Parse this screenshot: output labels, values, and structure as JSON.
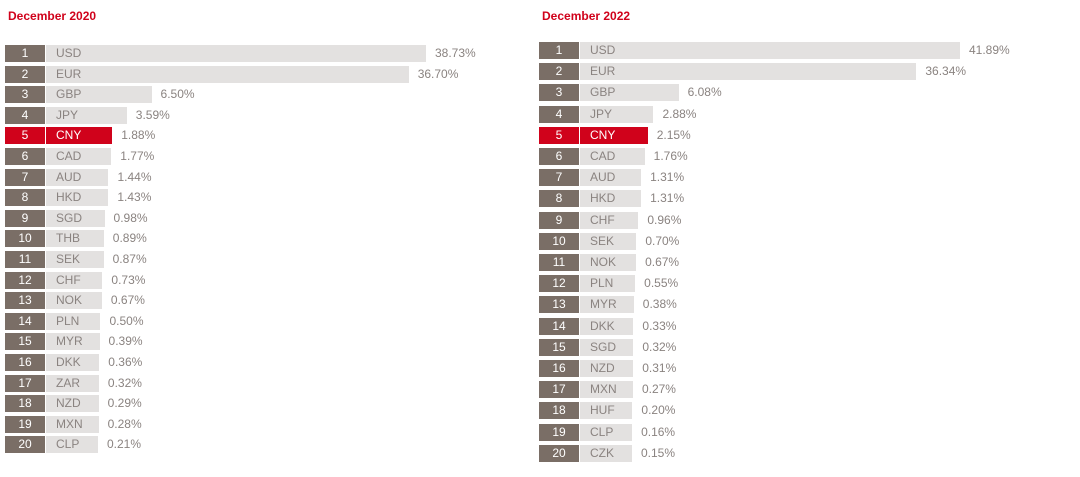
{
  "colors": {
    "title": "#d0021b",
    "rank_bg": "#7a6e66",
    "bar": "#e3e1e0",
    "highlight": "#d0021b",
    "text": "#8a8380"
  },
  "chart_data": [
    {
      "type": "bar",
      "orientation": "horizontal",
      "title": "December 2020",
      "highlight": "CNY",
      "ranks": [
        "1",
        "2",
        "3",
        "4",
        "5",
        "6",
        "7",
        "8",
        "9",
        "10",
        "11",
        "12",
        "13",
        "14",
        "15",
        "16",
        "17",
        "18",
        "19",
        "20"
      ],
      "categories": [
        "USD",
        "EUR",
        "GBP",
        "JPY",
        "CNY",
        "CAD",
        "AUD",
        "HKD",
        "SGD",
        "THB",
        "SEK",
        "CHF",
        "NOK",
        "PLN",
        "MYR",
        "DKK",
        "ZAR",
        "NZD",
        "MXN",
        "CLP"
      ],
      "values": [
        38.73,
        36.7,
        6.5,
        3.59,
        1.88,
        1.77,
        1.44,
        1.43,
        0.98,
        0.89,
        0.87,
        0.73,
        0.67,
        0.5,
        0.39,
        0.36,
        0.32,
        0.29,
        0.28,
        0.21
      ],
      "labels": [
        "38.73%",
        "36.70%",
        "6.50%",
        "3.59%",
        "1.88%",
        "1.77%",
        "1.44%",
        "1.43%",
        "0.98%",
        "0.89%",
        "0.87%",
        "0.73%",
        "0.67%",
        "0.50%",
        "0.39%",
        "0.36%",
        "0.32%",
        "0.29%",
        "0.28%",
        "0.21%"
      ]
    },
    {
      "type": "bar",
      "orientation": "horizontal",
      "title": "December 2022",
      "highlight": "CNY",
      "ranks": [
        "1",
        "2",
        "3",
        "4",
        "5",
        "6",
        "7",
        "8",
        "9",
        "10",
        "11",
        "12",
        "13",
        "14",
        "15",
        "16",
        "17",
        "18",
        "19",
        "20"
      ],
      "categories": [
        "USD",
        "EUR",
        "GBP",
        "JPY",
        "CNY",
        "CAD",
        "AUD",
        "HKD",
        "CHF",
        "SEK",
        "NOK",
        "PLN",
        "MYR",
        "DKK",
        "SGD",
        "NZD",
        "MXN",
        "HUF",
        "CLP",
        "CZK"
      ],
      "values": [
        41.89,
        36.34,
        6.08,
        2.88,
        2.15,
        1.76,
        1.31,
        1.31,
        0.96,
        0.7,
        0.67,
        0.55,
        0.38,
        0.33,
        0.32,
        0.31,
        0.27,
        0.2,
        0.16,
        0.15
      ],
      "labels": [
        "41.89%",
        "36.34%",
        "6.08%",
        "2.88%",
        "2.15%",
        "1.76%",
        "1.31%",
        "1.31%",
        "0.96%",
        "0.70%",
        "0.67%",
        "0.55%",
        "0.38%",
        "0.33%",
        "0.32%",
        "0.31%",
        "0.27%",
        "0.20%",
        "0.16%",
        "0.15%"
      ]
    }
  ]
}
